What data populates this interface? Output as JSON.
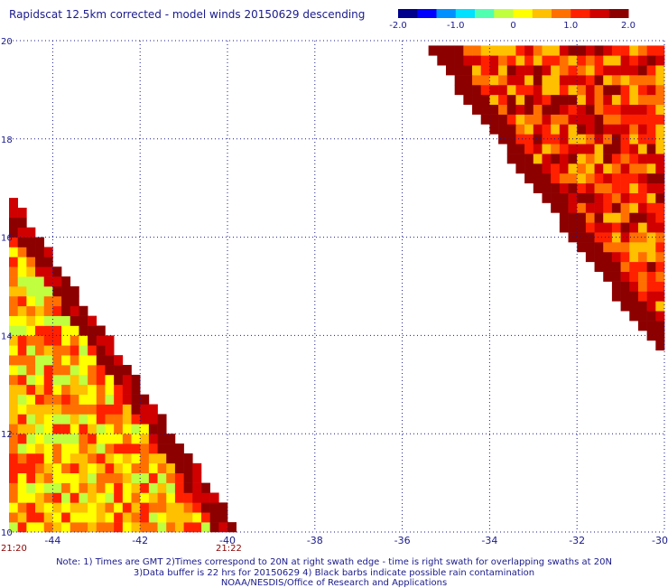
{
  "title": "Rapidscat 12.5km corrected - model winds 20150629 descending",
  "colorbar": {
    "ticks": [
      "-2.0",
      "-1.0",
      "0",
      "1.0",
      "2.0"
    ],
    "tick_values": [
      -2.0,
      -1.0,
      0,
      1.0,
      2.0
    ],
    "colors": [
      "#00008c",
      "#0000ff",
      "#0090ff",
      "#00e0ff",
      "#50ffb0",
      "#c0ff40",
      "#ffff00",
      "#ffc000",
      "#ff7000",
      "#ff2000",
      "#d00000",
      "#8c0000"
    ]
  },
  "chart_data": {
    "type": "heatmap",
    "title": "Rapidscat 12.5km corrected - model winds 20150629 descending",
    "xlabel": "",
    "ylabel": "",
    "xlim": [
      -45,
      -30
    ],
    "ylim": [
      10,
      20
    ],
    "x_ticks": [
      "-44",
      "-42",
      "-40",
      "-38",
      "-36",
      "-34",
      "-32",
      "-30"
    ],
    "x_tick_values": [
      -44,
      -42,
      -40,
      -38,
      -36,
      -34,
      -32,
      -30
    ],
    "y_ticks": [
      "10",
      "12",
      "14",
      "16",
      "18",
      "20"
    ],
    "y_tick_values": [
      10,
      12,
      14,
      16,
      18,
      20
    ],
    "value_range": [
      -2.0,
      2.0
    ],
    "grid": true,
    "time_labels": [
      {
        "text": "21:20",
        "lon": -45.0
      },
      {
        "text": "21:22",
        "lon": -40.0
      }
    ],
    "swaths": [
      {
        "name": "left",
        "lon_range": [
          -45.0,
          -39.7
        ],
        "lat_range": [
          10.0,
          16.9
        ],
        "edge": [
          [
            -45.0,
            16.9
          ],
          [
            -39.7,
            10.0
          ]
        ],
        "mean_value": 0.55,
        "edge_value": 1.9
      },
      {
        "name": "right",
        "lon_range": [
          -35.4,
          -30.0
        ],
        "lat_range": [
          13.5,
          19.8
        ],
        "edge": [
          [
            -35.4,
            19.8
          ],
          [
            -30.0,
            13.5
          ]
        ],
        "mean_value": 1.15,
        "edge_value": 2.0
      }
    ]
  },
  "notes": [
    "Note: 1) Times are GMT 2)Times correspond to 20N at right swath edge - time is right swath for overlapping swaths at 20N",
    "3)Data buffer is 22 hrs for 20150629 4) Black barbs indicate possible rain contamination",
    "NOAA/NESDIS/Office of Research and Applications"
  ]
}
